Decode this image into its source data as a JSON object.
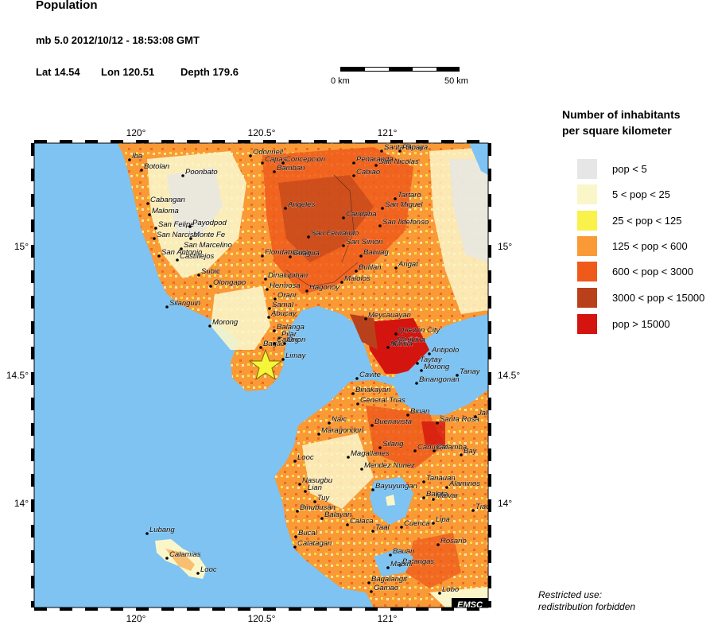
{
  "header": {
    "title": "Population",
    "event_line": "mb 5.0  2012/10/12 - 18:53:08 GMT",
    "lat": "Lat 14.54",
    "lon": "Lon 120.51",
    "depth": "Depth 179.6"
  },
  "scale_bar": {
    "start_label": "0 km",
    "end_label": "50 km"
  },
  "axes": {
    "top_labels": [
      "120°",
      "120.5°",
      "121°"
    ],
    "bottom_labels": [
      "120°",
      "120.5°",
      "121°"
    ],
    "left_labels": [
      "15°",
      "14.5°",
      "14°"
    ],
    "right_labels": [
      "15°",
      "14.5°",
      "14°"
    ]
  },
  "legend": {
    "title_line1": "Number of inhabitants",
    "title_line2": "per square kilometer",
    "items": [
      {
        "label": "pop < 5",
        "color": "#e6e6e6"
      },
      {
        "label": "5 < pop < 25",
        "color": "#fbf6c9"
      },
      {
        "label": "25 < pop < 125",
        "color": "#f9f24b"
      },
      {
        "label": "125 < pop < 600",
        "color": "#f99a36"
      },
      {
        "label": "600 < pop < 3000",
        "color": "#ef5a1b"
      },
      {
        "label": "3000 < pop < 15000",
        "color": "#b8401b"
      },
      {
        "label": "pop > 15000",
        "color": "#d4140f"
      }
    ]
  },
  "map": {
    "water_color": "#7ec3f2",
    "epicenter_marker": "star-icon",
    "places": [
      "Iba",
      "Botolan",
      "Poonbato",
      "Odonnell",
      "Concepcion",
      "Capas",
      "Santa Rosa",
      "San Nicolas",
      "Papaya",
      "Peñaranda",
      "Bamban",
      "Cabiao",
      "Cabangan",
      "Maloma",
      "San Felipe",
      "Payodpod",
      "San Narciso",
      "Monte Fe",
      "San Marcelino",
      "San Antonio",
      "Castillejos",
      "Angeles",
      "Candaba",
      "Tartaro",
      "San Miguel",
      "San Ildefonso",
      "San Fernando",
      "San Simon",
      "Floridablanca",
      "Guagua",
      "Baliuag",
      "Angat",
      "Subic",
      "Olongapo",
      "Dinalupihan",
      "Hermosa",
      "Orani",
      "Hagonoy",
      "Malolos",
      "Bulilan",
      "Samal",
      "Silanguin",
      "Abucay",
      "Meycauayan",
      "Morong",
      "Balanga",
      "Pilar",
      "Quezon City",
      "Marikina",
      "Bagac",
      "Cabog",
      "Orion",
      "Manila",
      "Antipolo",
      "Limay",
      "Taytay",
      "Morong",
      "Tanay",
      "Cavite",
      "Binangonan",
      "Binakayan",
      "General Trias",
      "Naic",
      "Buenavista",
      "Binan",
      "Santa Rosa",
      "Jala",
      "Maragondon",
      "Silang",
      "Cabuyao",
      "Calamba",
      "Bay",
      "Looc",
      "Magallanes",
      "Mendez Nunez",
      "Tanauan",
      "Alaminos",
      "Nasugbu",
      "Lian",
      "Tuy",
      "Bayuyungan",
      "Balete",
      "Malvar",
      "Tiao",
      "Binubusan",
      "Balayan",
      "Calaca",
      "Lipa",
      "Taal",
      "Cuenca",
      "Bucal",
      "Calatagan",
      "Rosario",
      "Bauan",
      "Batangas",
      "Mabini",
      "Bagalangit",
      "Gamao",
      "Lobo",
      "Lubang",
      "Calamias",
      "Looc"
    ],
    "badge": "EMSC"
  },
  "footer": {
    "line1": "Restricted use:",
    "line2": "redistribution forbidden"
  }
}
